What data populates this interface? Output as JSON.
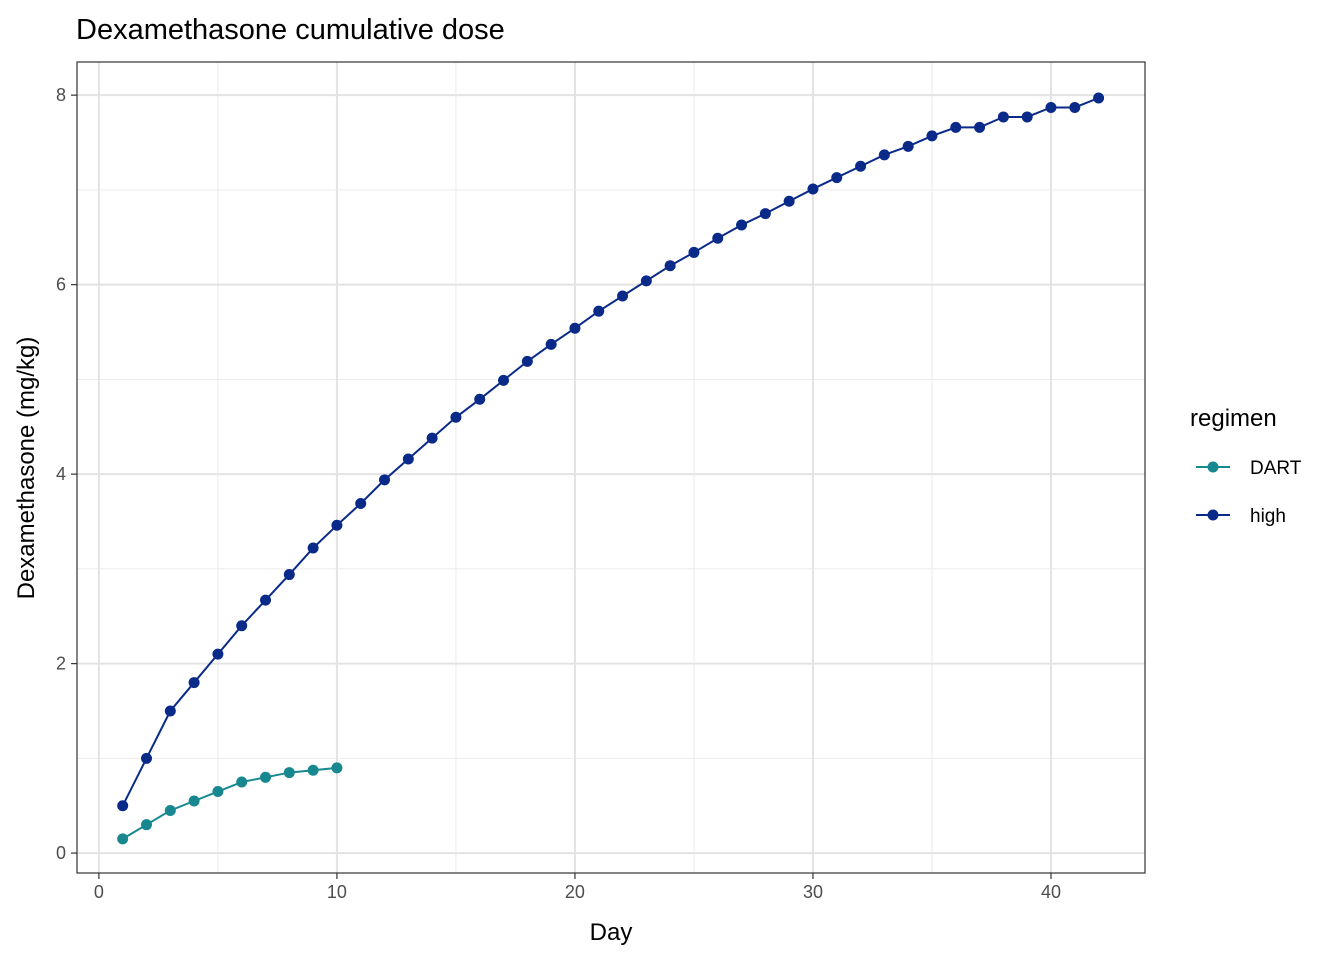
{
  "chart_data": {
    "type": "line",
    "title": "Dexamethasone cumulative dose",
    "xlabel": "Day",
    "ylabel": "Dexamethasone (mg/kg)",
    "xlim": [
      -0.92,
      43.95
    ],
    "ylim": [
      -0.21,
      8.35
    ],
    "xticks": [
      0,
      10,
      20,
      30,
      40
    ],
    "yticks": [
      0,
      2,
      4,
      6,
      8
    ],
    "grid": true,
    "legend": {
      "title": "regimen",
      "placement": "right"
    },
    "series": [
      {
        "name": "DART",
        "color": "#17888f",
        "x": [
          1,
          2,
          3,
          4,
          5,
          6,
          7,
          8,
          9,
          10
        ],
        "y": [
          0.15,
          0.3,
          0.45,
          0.55,
          0.65,
          0.75,
          0.8,
          0.85,
          0.875,
          0.9
        ]
      },
      {
        "name": "high",
        "color": "#0a2a8a",
        "x": [
          1,
          2,
          3,
          4,
          5,
          6,
          7,
          8,
          9,
          10,
          11,
          12,
          13,
          14,
          15,
          16,
          17,
          18,
          19,
          20,
          21,
          22,
          23,
          24,
          25,
          26,
          27,
          28,
          29,
          30,
          31,
          32,
          33,
          34,
          35,
          36,
          37,
          38,
          39,
          40,
          41,
          42
        ],
        "y": [
          0.5,
          1.0,
          1.5,
          1.8,
          2.1,
          2.4,
          2.67,
          2.94,
          3.22,
          3.46,
          3.69,
          3.94,
          4.16,
          4.38,
          4.6,
          4.79,
          4.99,
          5.19,
          5.37,
          5.54,
          5.72,
          5.88,
          6.04,
          6.2,
          6.34,
          6.49,
          6.63,
          6.75,
          6.88,
          7.01,
          7.13,
          7.25,
          7.37,
          7.46,
          7.57,
          7.66,
          7.66,
          7.77,
          7.77,
          7.87,
          7.87,
          7.97
        ]
      }
    ]
  }
}
